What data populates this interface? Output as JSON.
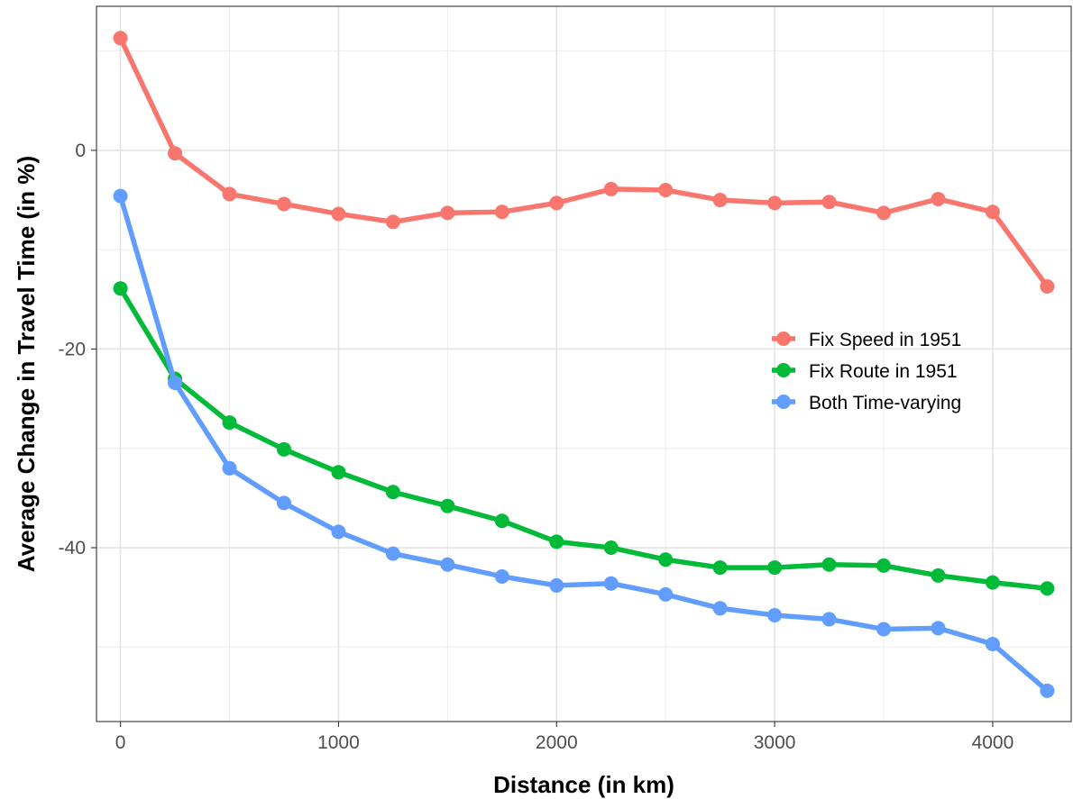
{
  "chart_data": {
    "type": "line",
    "xlabel": "Distance (in km)",
    "ylabel": "Average Change in Travel Time (in %)",
    "xlim": [
      -110,
      4360
    ],
    "ylim": [
      -57.5,
      14.5
    ],
    "x_ticks": [
      0,
      1000,
      2000,
      3000,
      4000
    ],
    "y_ticks": [
      0,
      -20,
      -40
    ],
    "x_minor": [
      500,
      1500,
      2500,
      3500
    ],
    "y_minor": [
      10,
      -10,
      -30,
      -50
    ],
    "grid": true,
    "legend_position": "right",
    "x": [
      0,
      250,
      500,
      750,
      1000,
      1250,
      1500,
      1750,
      2000,
      2250,
      2500,
      2750,
      3000,
      3250,
      3500,
      3750,
      4000,
      4250
    ],
    "series": [
      {
        "name": "Fix Speed in 1951",
        "color": "#f8766d",
        "values": [
          11.3,
          -0.3,
          -4.4,
          -5.4,
          -6.4,
          -7.2,
          -6.3,
          -6.2,
          -5.3,
          -3.9,
          -4.0,
          -5.0,
          -5.3,
          -5.2,
          -6.3,
          -4.9,
          -6.2,
          -13.7
        ]
      },
      {
        "name": "Fix Route in 1951",
        "color": "#00ba38",
        "values": [
          -13.9,
          -23.0,
          -27.4,
          -30.1,
          -32.4,
          -34.4,
          -35.8,
          -37.3,
          -39.4,
          -40.0,
          -41.2,
          -42.0,
          -42.0,
          -41.7,
          -41.8,
          -42.8,
          -43.5,
          -44.1
        ]
      },
      {
        "name": "Both Time-varying",
        "color": "#619cff",
        "values": [
          -4.6,
          -23.4,
          -32.0,
          -35.5,
          -38.4,
          -40.6,
          -41.7,
          -42.9,
          -43.8,
          -43.6,
          -44.7,
          -46.1,
          -46.8,
          -47.2,
          -48.2,
          -48.1,
          -49.7,
          -54.4
        ]
      }
    ]
  }
}
